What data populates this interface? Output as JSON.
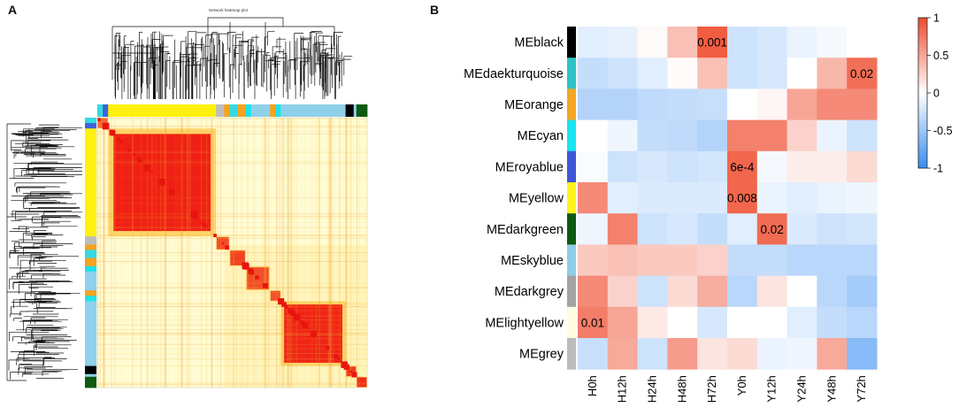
{
  "panels": {
    "a_label": "A",
    "b_label": "B",
    "a_title": "Network heatmap plot"
  },
  "chart_data": [
    {
      "type": "heatmap",
      "title": "Network heatmap plot",
      "description_role": "gene network TOM heatmap with dendrograms and module color bars",
      "module_order": [
        "turquoise",
        "royalblue",
        "yellow",
        "grey",
        "orange",
        "turquoise",
        "cyan",
        "skyblue",
        "orange",
        "cyan",
        "skyblue",
        "black",
        "skyblue",
        "darkgreen"
      ],
      "color_scale": [
        "#fffbd0",
        "#ffe680",
        "#f9a21f",
        "#ef1b12"
      ]
    },
    {
      "type": "heatmap",
      "title": "",
      "rows": [
        "MEblack",
        "MEdaekturquoise",
        "MEorange",
        "MEcyan",
        "MEroyablue",
        "MEyellow",
        "MEdarkgreen",
        "MEskyblue",
        "MEdarkgrey",
        "MElightyellow",
        "MEgrey"
      ],
      "row_colors": [
        "#000000",
        "#2ec4c6",
        "#f5a623",
        "#19e6f0",
        "#3d57d6",
        "#fff21c",
        "#0e5a12",
        "#8ecfe8",
        "#a3a3a3",
        "#fffde0",
        "#bcbcbc"
      ],
      "columns": [
        "H0h",
        "H12h",
        "H24h",
        "H48h",
        "H72h",
        "Y0h",
        "Y12h",
        "Y24h",
        "Y48h",
        "Y72h"
      ],
      "values": [
        [
          -0.15,
          -0.12,
          0.03,
          0.35,
          0.9,
          -0.25,
          -0.2,
          -0.1,
          -0.05,
          0.0
        ],
        [
          -0.3,
          -0.25,
          -0.15,
          0.02,
          0.35,
          -0.25,
          -0.2,
          0.0,
          0.4,
          0.8
        ],
        [
          -0.38,
          -0.38,
          -0.32,
          -0.3,
          -0.28,
          0.0,
          0.05,
          0.5,
          0.65,
          0.65
        ],
        [
          0.0,
          -0.08,
          -0.3,
          -0.32,
          -0.38,
          0.7,
          0.7,
          0.25,
          -0.1,
          -0.25
        ],
        [
          -0.03,
          -0.25,
          -0.2,
          -0.25,
          -0.22,
          0.85,
          -0.05,
          0.1,
          0.1,
          0.2
        ],
        [
          0.65,
          -0.15,
          -0.18,
          -0.18,
          -0.18,
          0.85,
          -0.1,
          -0.15,
          -0.1,
          -0.08
        ],
        [
          -0.08,
          0.7,
          -0.25,
          -0.2,
          -0.3,
          -0.15,
          0.82,
          -0.18,
          -0.25,
          -0.22
        ],
        [
          0.3,
          0.35,
          0.3,
          0.3,
          0.25,
          -0.3,
          -0.3,
          -0.35,
          -0.35,
          -0.35
        ],
        [
          0.65,
          0.25,
          -0.25,
          0.2,
          0.45,
          -0.35,
          0.15,
          0.0,
          -0.35,
          -0.45
        ],
        [
          0.72,
          0.5,
          0.12,
          0.0,
          -0.2,
          0.0,
          0.0,
          -0.15,
          -0.3,
          -0.35
        ],
        [
          -0.28,
          0.48,
          -0.25,
          0.55,
          0.15,
          0.2,
          -0.1,
          -0.08,
          0.48,
          -0.6
        ]
      ],
      "cell_labels": [
        {
          "row": 0,
          "col": 4,
          "text": "0.001"
        },
        {
          "row": 1,
          "col": 9,
          "text": "0.02"
        },
        {
          "row": 4,
          "col": 5,
          "text": "6e-4"
        },
        {
          "row": 5,
          "col": 5,
          "text": "0.008"
        },
        {
          "row": 6,
          "col": 6,
          "text": "0.02"
        },
        {
          "row": 9,
          "col": 0,
          "text": "0.01"
        }
      ],
      "colorbar": {
        "range": [
          -1,
          1
        ],
        "ticks": [
          "1",
          "0.5",
          "0",
          "-0.5",
          "-1"
        ],
        "tick_values": [
          1,
          0.5,
          0,
          -0.5,
          -1
        ]
      }
    }
  ]
}
